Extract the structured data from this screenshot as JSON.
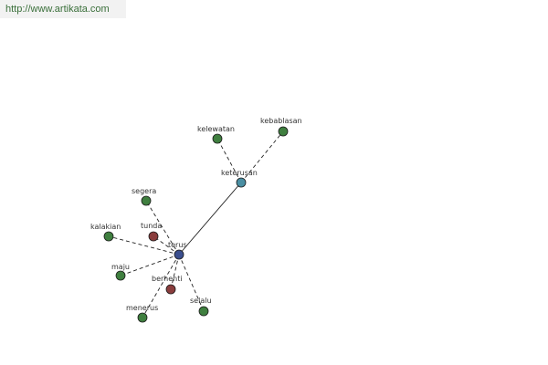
{
  "source": {
    "url": "http://www.artikata.com"
  },
  "graph": {
    "nodes": [
      {
        "id": "terus",
        "label": "terus",
        "type": "center",
        "color": "#3b4f8f"
      },
      {
        "id": "keterusan",
        "label": "keterusan",
        "type": "related",
        "color": "#4a8fa3"
      },
      {
        "id": "kelewatan",
        "label": "kelewatan",
        "type": "synonym",
        "color": "#3f7f3f"
      },
      {
        "id": "kebablasan",
        "label": "kebablasan",
        "type": "synonym",
        "color": "#3f7f3f"
      },
      {
        "id": "segera",
        "label": "segera",
        "type": "synonym",
        "color": "#3f7f3f"
      },
      {
        "id": "tunda",
        "label": "tunda",
        "type": "antonym",
        "color": "#8a3d3d"
      },
      {
        "id": "kalakian",
        "label": "kalakian",
        "type": "synonym",
        "color": "#3f7f3f"
      },
      {
        "id": "maju",
        "label": "maju",
        "type": "synonym",
        "color": "#3f7f3f"
      },
      {
        "id": "berhenti",
        "label": "berhenti",
        "type": "antonym",
        "color": "#8a3d3d"
      },
      {
        "id": "menerus",
        "label": "menerus",
        "type": "synonym",
        "color": "#3f7f3f"
      },
      {
        "id": "selalu",
        "label": "selalu",
        "type": "synonym",
        "color": "#3f7f3f"
      }
    ],
    "edges": [
      {
        "from": "terus",
        "to": "keterusan",
        "style": "solid"
      },
      {
        "from": "keterusan",
        "to": "kelewatan",
        "style": "dashed"
      },
      {
        "from": "keterusan",
        "to": "kebablasan",
        "style": "dashed"
      },
      {
        "from": "terus",
        "to": "segera",
        "style": "dashed"
      },
      {
        "from": "terus",
        "to": "tunda",
        "style": "dashed"
      },
      {
        "from": "terus",
        "to": "kalakian",
        "style": "dashed"
      },
      {
        "from": "terus",
        "to": "maju",
        "style": "dashed"
      },
      {
        "from": "terus",
        "to": "berhenti",
        "style": "dashed"
      },
      {
        "from": "terus",
        "to": "menerus",
        "style": "dashed"
      },
      {
        "from": "terus",
        "to": "selalu",
        "style": "dashed"
      }
    ]
  }
}
